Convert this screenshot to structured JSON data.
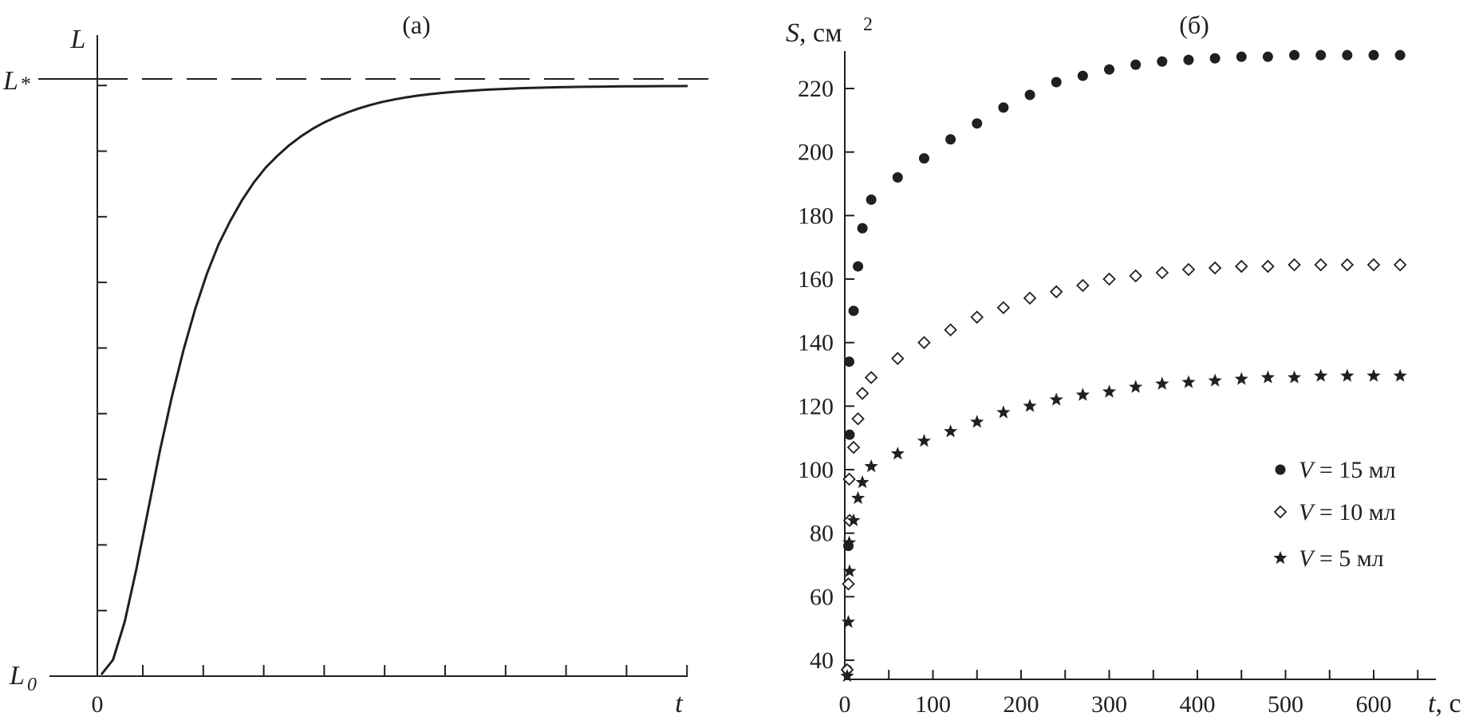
{
  "colors": {
    "ink": "#231f20",
    "background": "#ffffff"
  },
  "chart_data": [
    {
      "type": "line",
      "title": "(a)",
      "ylabel": "L",
      "xlabel": "t",
      "x_tick_label": "0",
      "y_tick_labels": {
        "bottom": "L",
        "bottom_sub": "0",
        "top": "L",
        "top_sub": "*"
      },
      "asymptote": "dashed horizontal line at L*",
      "x": [
        0,
        0.02,
        0.04,
        0.06,
        0.08,
        0.1,
        0.12,
        0.14,
        0.16,
        0.18,
        0.2,
        0.22,
        0.24,
        0.26,
        0.28,
        0.3,
        0.32,
        0.34,
        0.36,
        0.38,
        0.4,
        0.42,
        0.44,
        0.46,
        0.48,
        0.5,
        0.52,
        0.54,
        0.56,
        0.58,
        0.6,
        0.62,
        0.64,
        0.66,
        0.68,
        0.7,
        0.72,
        0.74,
        0.76,
        0.78,
        0.8,
        0.82,
        0.84,
        0.86,
        0.88,
        0.9,
        0.92,
        0.94,
        0.96,
        0.98,
        1.0
      ],
      "y": [
        0.0,
        0.025,
        0.09,
        0.18,
        0.28,
        0.38,
        0.47,
        0.55,
        0.62,
        0.68,
        0.73,
        0.77,
        0.805,
        0.835,
        0.86,
        0.88,
        0.898,
        0.913,
        0.926,
        0.937,
        0.946,
        0.954,
        0.961,
        0.967,
        0.972,
        0.976,
        0.9795,
        0.9825,
        0.985,
        0.987,
        0.9888,
        0.9903,
        0.9916,
        0.9927,
        0.9937,
        0.9945,
        0.9952,
        0.9958,
        0.9963,
        0.9967,
        0.9971,
        0.9974,
        0.9977,
        0.9979,
        0.9981,
        0.9983,
        0.9984,
        0.9985,
        0.9986,
        0.9987,
        0.9988
      ],
      "asymptote_y": 1.0,
      "xlim": [
        0,
        1
      ],
      "ylim": [
        0,
        1
      ],
      "grid": false
    },
    {
      "type": "scatter",
      "title": "(б)",
      "ylabel": "S, см",
      "ylabel_sup": "2",
      "xlabel": "t, с",
      "xlim": [
        0,
        630
      ],
      "ylim": [
        35,
        230
      ],
      "x_ticks": [
        0,
        100,
        200,
        300,
        400,
        500,
        600
      ],
      "y_ticks": [
        40,
        60,
        80,
        100,
        120,
        140,
        160,
        180,
        200,
        220
      ],
      "grid": false,
      "legend_position": "bottom-right",
      "series": [
        {
          "name": "V = 15 мл",
          "marker": "circle-filled",
          "x": [
            0,
            1,
            2,
            5,
            10,
            15,
            20,
            30,
            60,
            90,
            120,
            150,
            180,
            210,
            240,
            270,
            300,
            330,
            360,
            390,
            420,
            450,
            480,
            510,
            540,
            570,
            600,
            630
          ],
          "y": [
            37,
            76,
            111,
            134,
            150,
            164,
            176,
            185,
            192,
            198,
            204,
            209,
            214,
            218,
            222,
            224,
            226,
            227.5,
            228.5,
            229,
            229.5,
            230,
            230,
            230.5,
            230.5,
            230.5,
            230.5,
            230.5
          ]
        },
        {
          "name": "V = 10 мл",
          "marker": "diamond-open",
          "x": [
            0,
            1,
            2,
            5,
            10,
            15,
            20,
            30,
            60,
            90,
            120,
            150,
            180,
            210,
            240,
            270,
            300,
            330,
            360,
            390,
            420,
            450,
            480,
            510,
            540,
            570,
            600,
            630
          ],
          "y": [
            37,
            64,
            84,
            97,
            107,
            116,
            124,
            129,
            135,
            140,
            144,
            148,
            151,
            154,
            156,
            158,
            160,
            161,
            162,
            163,
            163.5,
            164,
            164,
            164.5,
            164.5,
            164.5,
            164.5,
            164.5
          ],
          "x_note": ""
        },
        {
          "name": "V = 5 мл",
          "marker": "star-filled",
          "x": [
            0,
            1,
            2,
            5,
            10,
            15,
            20,
            30,
            60,
            90,
            120,
            150,
            180,
            210,
            240,
            270,
            300,
            330,
            360,
            390,
            420,
            450,
            480,
            510,
            540,
            570,
            600,
            630
          ],
          "y": [
            35,
            52,
            68,
            77,
            84,
            91,
            96,
            101,
            105,
            109,
            112,
            115,
            118,
            120,
            122,
            123.5,
            124.5,
            126,
            127,
            127.5,
            128,
            128.5,
            129,
            129,
            129.5,
            129.5,
            129.5,
            129.5
          ]
        }
      ]
    }
  ]
}
